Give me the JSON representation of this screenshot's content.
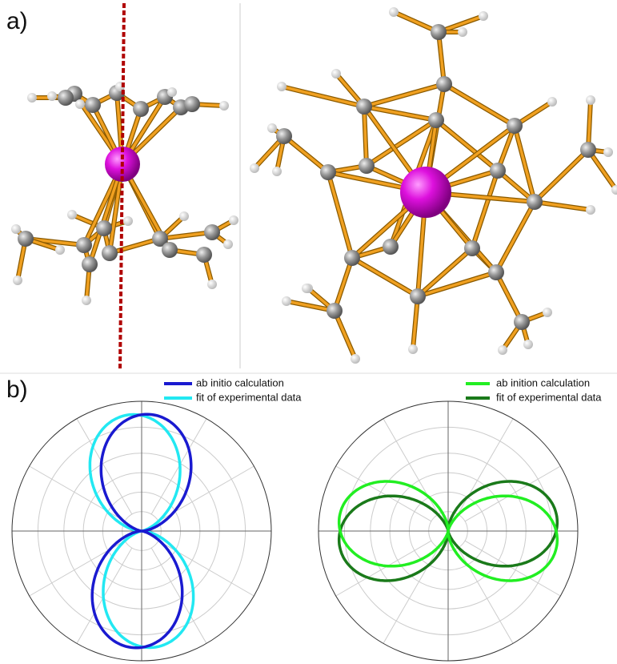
{
  "panel_a": {
    "label": "a)"
  },
  "panel_b": {
    "label": "b)",
    "left_plot": {
      "legend": [
        {
          "name": "ab initio calculation",
          "color": "#1a1ad0"
        },
        {
          "name": "fit of experimental data",
          "color": "#22e8f2"
        }
      ]
    },
    "right_plot": {
      "legend": [
        {
          "name": "ab inition calculation",
          "color": "#22ee22"
        },
        {
          "name": "fit of experimental data",
          "color": "#1a7a1a"
        }
      ]
    }
  }
}
